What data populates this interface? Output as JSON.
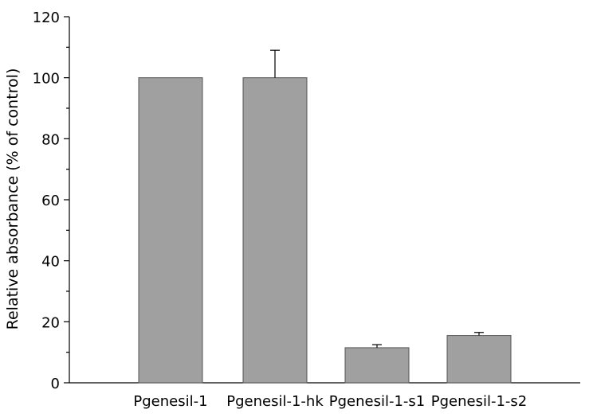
{
  "chart_data": {
    "type": "bar",
    "title": "",
    "xlabel": "",
    "ylabel": "Relative absorbance (% of control)",
    "ylim": [
      0,
      120
    ],
    "yticks": [
      0,
      20,
      40,
      60,
      80,
      100,
      120
    ],
    "ytick_labels": [
      "0",
      "20",
      "40",
      "60",
      "80",
      "100",
      "120"
    ],
    "categories": [
      "Pgenesil-1",
      "Pgenesil-1-hk",
      "Pgenesil-1-s1",
      "Pgenesil-1-s2"
    ],
    "values": [
      100,
      100,
      11.5,
      15.5
    ],
    "error": [
      0,
      9,
      1,
      1
    ],
    "grid": false,
    "bar_color": "#a0a0a0",
    "bar_edge_color": "#555555"
  }
}
